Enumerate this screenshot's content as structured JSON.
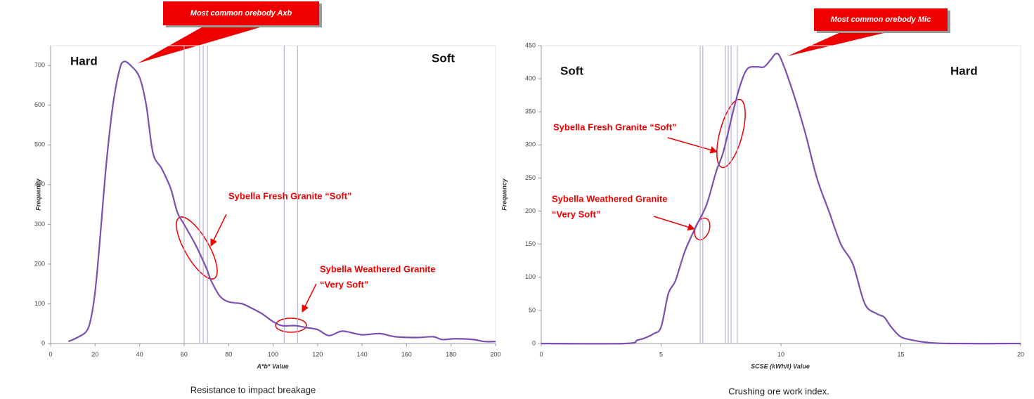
{
  "chart_data": [
    {
      "type": "line",
      "callout": "Most common orebody Axb",
      "xlabel": "A*b* Value",
      "ylabel": "Frequency",
      "caption": "Resistance to impact breakage",
      "annotations": [
        "Hard",
        "Soft",
        "Sybella Fresh Granite “Soft”",
        "Sybella Weathered Granite",
        "“Very Soft”"
      ],
      "x": [
        8,
        12,
        16,
        18,
        20,
        22,
        25,
        28,
        31,
        33,
        36,
        40,
        43,
        46,
        50,
        54,
        57,
        60,
        65,
        70,
        72,
        76,
        80,
        86,
        90,
        95,
        100,
        104,
        110,
        115,
        120,
        125,
        130,
        133,
        140,
        148,
        155,
        165,
        172,
        176,
        182,
        190,
        195,
        200
      ],
      "values": [
        5,
        15,
        30,
        60,
        130,
        250,
        450,
        600,
        690,
        710,
        700,
        670,
        600,
        480,
        440,
        390,
        330,
        300,
        250,
        190,
        160,
        120,
        105,
        100,
        90,
        75,
        55,
        45,
        45,
        40,
        35,
        20,
        30,
        30,
        22,
        25,
        17,
        15,
        17,
        10,
        12,
        10,
        5,
        5
      ],
      "color": "#7a4fb0",
      "reference_lines": [
        60,
        67,
        68.6,
        70.5,
        105,
        111
      ],
      "reference_color": "#b9b3d6",
      "xlim": [
        0,
        200
      ],
      "xticks": [
        0,
        20,
        40,
        60,
        80,
        100,
        120,
        140,
        160,
        180,
        200
      ],
      "ylim": [
        0,
        750
      ],
      "yticks": [
        0,
        100,
        200,
        300,
        400,
        500,
        600,
        700
      ]
    },
    {
      "type": "line",
      "callout": "Most common orebody Mic",
      "xlabel": "SCSE (kWh/t) Value",
      "ylabel": "Frequency",
      "caption": "Crushing ore work index.",
      "annotations": [
        "Soft",
        "Hard",
        "Sybella Fresh Granite “Soft”",
        "Sybella Weathered Granite",
        "“Very Soft”"
      ],
      "x": [
        0,
        3.5,
        4,
        4.3,
        4.7,
        5,
        5.3,
        5.6,
        6,
        6.5,
        6.9,
        7.3,
        7.6,
        8,
        8.3,
        8.6,
        9,
        9.3,
        9.6,
        9.8,
        10,
        10.5,
        11,
        11.5,
        12,
        12.5,
        13,
        13.5,
        14,
        14.3,
        14.6,
        15,
        15.5,
        16,
        17,
        20
      ],
      "values": [
        0,
        0,
        5,
        8,
        15,
        25,
        75,
        95,
        140,
        180,
        210,
        260,
        290,
        350,
        390,
        415,
        418,
        418,
        430,
        438,
        430,
        380,
        320,
        250,
        200,
        150,
        120,
        60,
        45,
        40,
        25,
        10,
        5,
        2,
        0,
        0
      ],
      "color": "#7a4fb0",
      "reference_lines": [
        6.63,
        6.74,
        7.68,
        7.8,
        7.92,
        8.18
      ],
      "reference_color": "#b9b3d6",
      "xlim": [
        0,
        20
      ],
      "xticks": [
        0,
        5,
        10,
        15,
        20
      ],
      "ylim": [
        0,
        450
      ],
      "yticks": [
        0,
        50,
        100,
        150,
        200,
        250,
        300,
        350,
        400,
        450
      ]
    }
  ]
}
